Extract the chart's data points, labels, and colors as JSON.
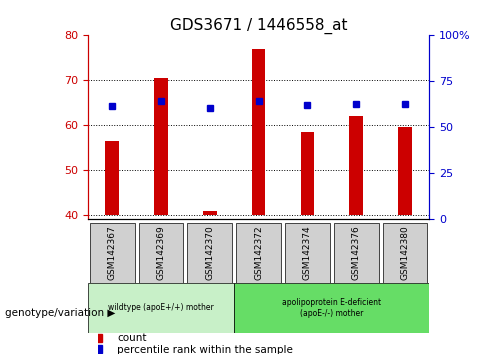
{
  "title": "GDS3671 / 1446558_at",
  "samples": [
    "GSM142367",
    "GSM142369",
    "GSM142370",
    "GSM142372",
    "GSM142374",
    "GSM142376",
    "GSM142380"
  ],
  "bar_heights": [
    56.5,
    70.5,
    41.0,
    77.0,
    58.5,
    62.0,
    59.5
  ],
  "bar_base": 40.0,
  "percentile_values": [
    61.5,
    64.5,
    60.5,
    64.5,
    62.0,
    63.0,
    63.0
  ],
  "ylim_left": [
    39,
    80
  ],
  "ylim_right": [
    0,
    100
  ],
  "yticks_left": [
    40,
    50,
    60,
    70,
    80
  ],
  "yticks_right": [
    0,
    25,
    50,
    75,
    100
  ],
  "ytick_labels_right": [
    "0",
    "25",
    "50",
    "75",
    "100%"
  ],
  "bar_color": "#cc0000",
  "square_color": "#0000cc",
  "bg_color": "#ffffff",
  "group1_label": "wildtype (apoE+/+) mother",
  "group2_label": "apolipoprotein E-deficient\n(apoE-/-) mother",
  "group1_indices": [
    0,
    1,
    2
  ],
  "group2_indices": [
    3,
    4,
    5,
    6
  ],
  "group1_color": "#c8f0c8",
  "group2_color": "#66dd66",
  "sample_bg_color": "#d0d0d0",
  "legend_count_label": "count",
  "legend_pct_label": "percentile rank within the sample",
  "genotype_label": "genotype/variation",
  "title_fontsize": 11,
  "tick_fontsize": 8,
  "bar_width": 0.28
}
